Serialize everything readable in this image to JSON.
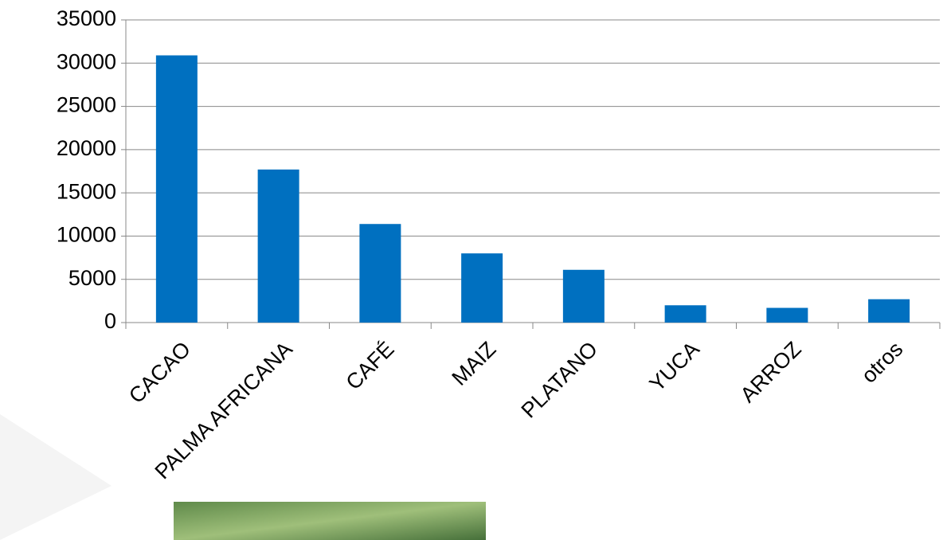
{
  "chart_data": {
    "type": "bar",
    "categories": [
      "CACAO",
      "PALMA AFRICANA",
      "CAFÉ",
      "MAIZ",
      "PLATANO",
      "YUCA",
      "ARROZ",
      "otros"
    ],
    "values": [
      30900,
      17700,
      11400,
      8000,
      6100,
      2000,
      1700,
      2700
    ],
    "color": "#0070c0",
    "ylim": [
      0,
      35000
    ],
    "yticks": [
      0,
      5000,
      10000,
      15000,
      20000,
      25000,
      30000,
      35000
    ],
    "grid": true
  }
}
